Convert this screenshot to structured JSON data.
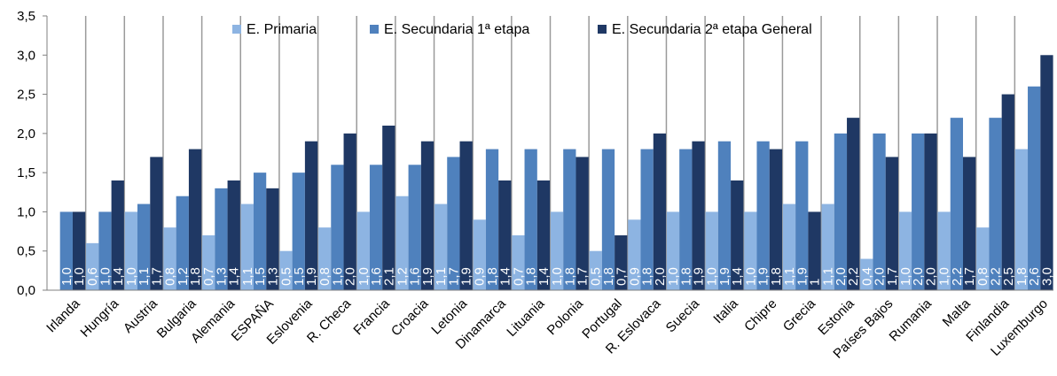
{
  "chart_data": {
    "type": "bar",
    "categories": [
      "Irlanda",
      "Hungría",
      "Austria",
      "Bulgaria",
      "Alemania",
      "ESPAÑA",
      "Eslovenia",
      "R. Checa",
      "Francia",
      "Croacia",
      "Letonia",
      "Dinamarca",
      "Lituania",
      "Polonia",
      "Portugal",
      "R. Eslovaca",
      "Suecia",
      "Italia",
      "Chipre",
      "Grecia",
      "Estonia",
      "Países Bajos",
      "Rumania",
      "Malta",
      "Finlandia",
      "Luxemburgo"
    ],
    "series": [
      {
        "name": "E. Primaria",
        "color": "#8db4e2",
        "values": [
          null,
          0.6,
          1.0,
          0.8,
          0.7,
          1.1,
          0.5,
          0.8,
          1.0,
          1.2,
          1.1,
          0.9,
          0.7,
          1.0,
          0.5,
          0.9,
          1.0,
          1.0,
          1.0,
          1.1,
          1.1,
          0.4,
          1.0,
          1.0,
          0.8,
          1.8
        ],
        "labels": [
          "",
          "0,6",
          "1,0",
          "0,8",
          "0,7",
          "1,1",
          "0,5",
          "0,8",
          "1,0",
          "1,2",
          "1,1",
          "0,9",
          "0,7",
          "1,0",
          "0,5",
          "0,9",
          "1,0",
          "1,0",
          "1,0",
          "1,1",
          "1,1",
          "0,4",
          "1,0",
          "1,0",
          "0,8",
          "1,8"
        ]
      },
      {
        "name": "E. Secundaria 1ª etapa",
        "color": "#4f81bd",
        "values": [
          1.0,
          1.0,
          1.1,
          1.2,
          1.3,
          1.5,
          1.5,
          1.6,
          1.6,
          1.6,
          1.7,
          1.8,
          1.8,
          1.8,
          1.8,
          1.8,
          1.8,
          1.9,
          1.9,
          1.9,
          2.0,
          2.0,
          2.0,
          2.2,
          2.2,
          2.6
        ],
        "labels": [
          "1,0",
          "1,0",
          "1,1",
          "1,2",
          "1,3",
          "1,5",
          "1,5",
          "1,6",
          "1,6",
          "1,6",
          "1,7",
          "1,8",
          "1,8",
          "1,8",
          "1,8",
          "1,8",
          "1,8",
          "1,9",
          "1,9",
          "1,9",
          "2,0",
          "2,0",
          "2,0",
          "2,2",
          "2,2",
          "2,6"
        ]
      },
      {
        "name": "E. Secundaria 2ª etapa General",
        "color": "#1f3864",
        "values": [
          1.0,
          1.4,
          1.7,
          1.8,
          1.4,
          1.3,
          1.9,
          2.0,
          2.1,
          1.9,
          1.9,
          1.4,
          1.4,
          1.7,
          0.7,
          2.0,
          1.9,
          1.4,
          1.8,
          1.0,
          2.2,
          1.7,
          2.0,
          1.7,
          2.5,
          3.0
        ],
        "labels": [
          "1,0",
          "1,4",
          "1,7",
          "1,8",
          "1,4",
          "1,3",
          "1,9",
          "2,0",
          "2,1",
          "1,9",
          "1,9",
          "1,4",
          "1,4",
          "1,7",
          "0,7",
          "2,0",
          "1,9",
          "1,4",
          "1,8",
          "1",
          "2,2",
          "1,7",
          "2,0",
          "1,7",
          "2,5",
          "3,0"
        ]
      }
    ],
    "yticks": [
      "0,0",
      "0,5",
      "1,0",
      "1,5",
      "2,0",
      "2,5",
      "3,0",
      "3,5"
    ],
    "ylim": [
      0,
      3.5
    ],
    "title": "",
    "xlabel": "",
    "ylabel": "",
    "legend_position": "top-center",
    "grid": "vertical category separators"
  }
}
